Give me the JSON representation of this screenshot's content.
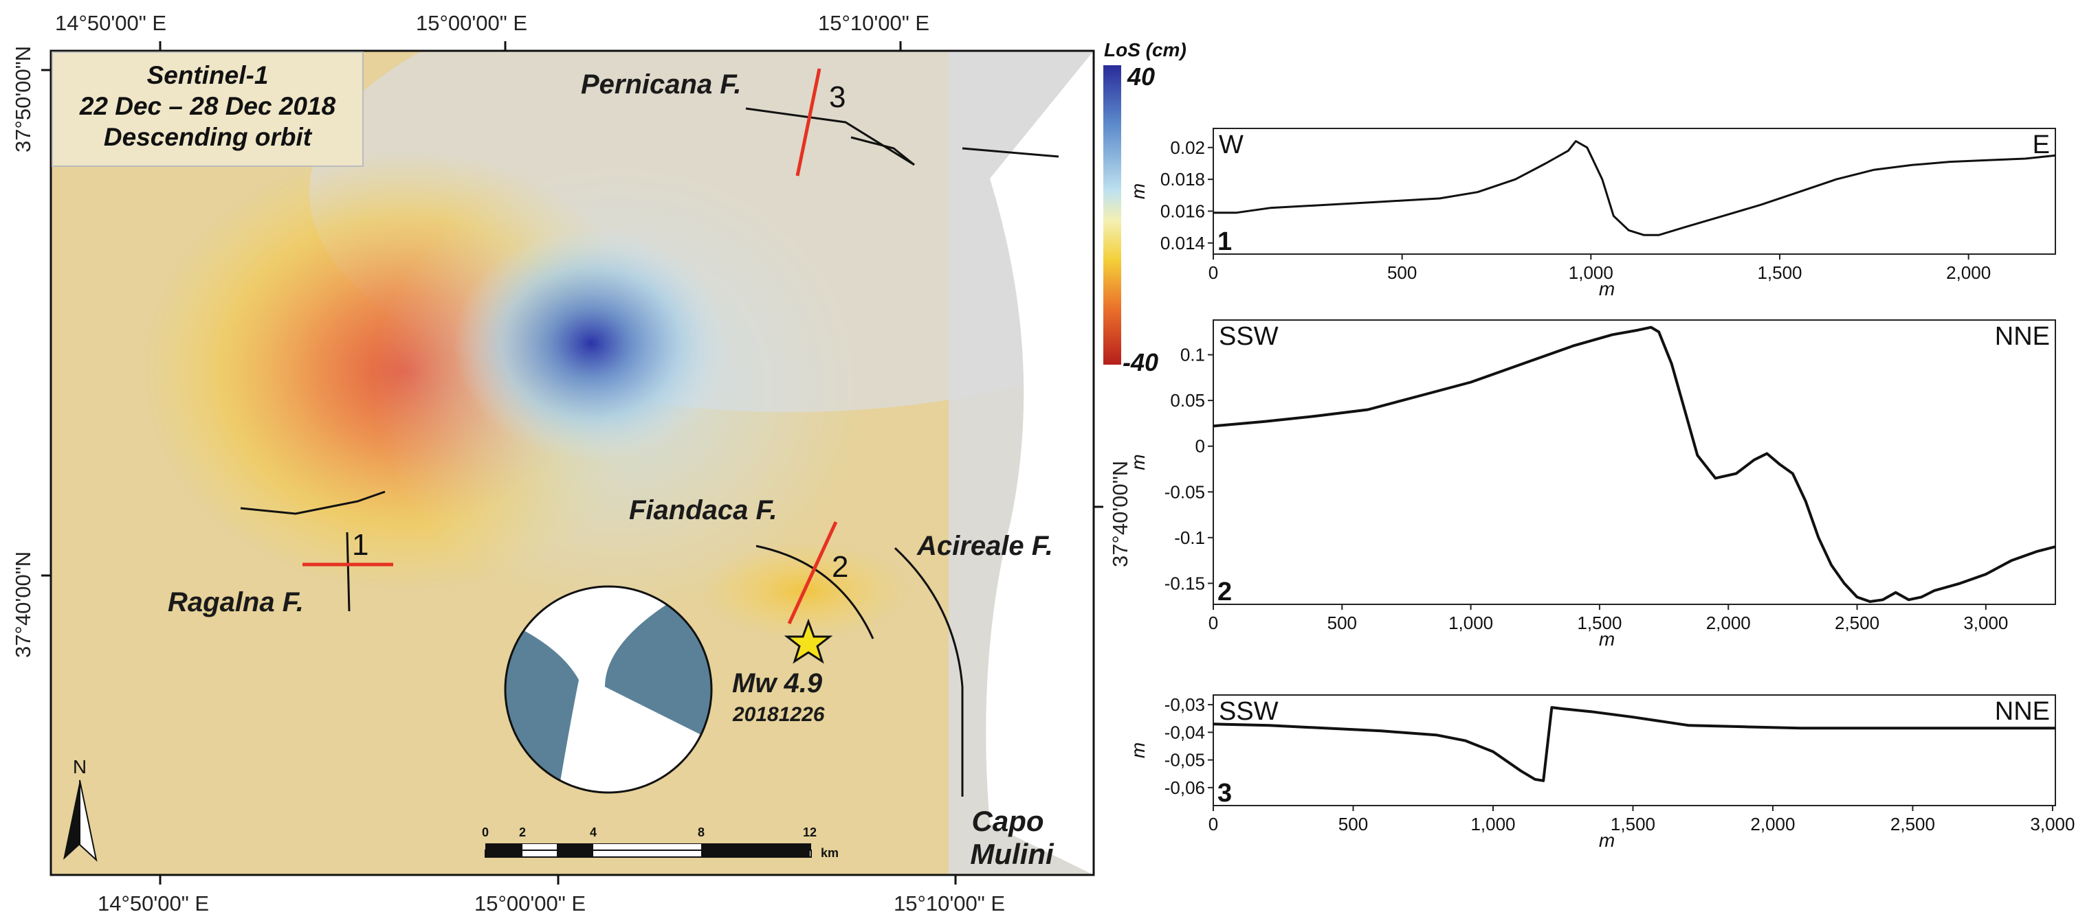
{
  "map": {
    "coords": {
      "top": [
        "14°50'00\" E",
        "15°00'00\" E",
        "15°10'00\" E"
      ],
      "bottom": [
        "14°50'00\" E",
        "15°00'00\" E",
        "15°10'00\" E"
      ],
      "left": [
        "37°50'00\"N",
        "37°40'00\"N"
      ],
      "right": [
        "37°40'00\"N"
      ]
    },
    "info_box": {
      "line1": "Sentinel-1",
      "line2": "22 Dec – 28 Dec 2018",
      "line3": "Descending orbit"
    },
    "faults": {
      "pernicana": "Pernicana F.",
      "fiandaca": "Fiandaca F.",
      "acireale": "Acireale F.",
      "ragalna": "Ragalna F."
    },
    "profile_markers": {
      "p1": "1",
      "p2": "2",
      "p3": "3"
    },
    "earthquake": {
      "magnitude": "Mw 4.9",
      "date": "20181226"
    },
    "place": {
      "line1": "Capo",
      "line2": "Mulini"
    },
    "north_arrow": {
      "label": "N"
    },
    "scale_bar": {
      "ticks": [
        "0",
        "2",
        "4",
        "8",
        "12"
      ],
      "unit": "km"
    },
    "colorbar": {
      "title": "LoS (cm)",
      "max": "40",
      "min": "-40"
    },
    "colors": {
      "profile_line": "#e63223",
      "fault_line": "#111111",
      "beachball_fill": "#5a8198",
      "star": "#f5e21b"
    }
  },
  "chart_data": [
    {
      "type": "line",
      "panel": "1",
      "left_label": "W",
      "right_label": "E",
      "xlabel": "m",
      "ylabel": "m",
      "xticks": [
        "0",
        "500",
        "1,000",
        "1,500",
        "2,000"
      ],
      "yticks": [
        "0.014",
        "0.016",
        "0.018",
        "0.02"
      ],
      "xlim": [
        0,
        2230
      ],
      "ylim": [
        0.0133,
        0.0212
      ],
      "x": [
        0,
        60,
        150,
        300,
        450,
        600,
        700,
        800,
        880,
        940,
        960,
        990,
        1030,
        1060,
        1100,
        1140,
        1180,
        1250,
        1350,
        1450,
        1550,
        1650,
        1750,
        1850,
        1950,
        2050,
        2150,
        2230
      ],
      "y": [
        0.0159,
        0.0159,
        0.0162,
        0.0164,
        0.0166,
        0.0168,
        0.0172,
        0.018,
        0.019,
        0.0198,
        0.0204,
        0.02,
        0.018,
        0.0157,
        0.0148,
        0.0145,
        0.0145,
        0.015,
        0.0157,
        0.0164,
        0.0172,
        0.018,
        0.0186,
        0.0189,
        0.0191,
        0.0192,
        0.0193,
        0.0195
      ]
    },
    {
      "type": "line",
      "panel": "2",
      "left_label": "SSW",
      "right_label": "NNE",
      "xlabel": "m",
      "ylabel": "m",
      "xticks": [
        "0",
        "500",
        "1,000",
        "1,500",
        "2,000",
        "2,500",
        "3,000"
      ],
      "yticks": [
        "-0.15",
        "-0.1",
        "-0.05",
        "0",
        "0.05",
        "0.1"
      ],
      "xlim": [
        0,
        3270
      ],
      "ylim": [
        -0.173,
        0.138
      ],
      "x": [
        0,
        200,
        400,
        600,
        800,
        1000,
        1200,
        1400,
        1550,
        1650,
        1700,
        1730,
        1780,
        1830,
        1880,
        1950,
        2030,
        2100,
        2150,
        2200,
        2250,
        2300,
        2350,
        2400,
        2450,
        2500,
        2550,
        2600,
        2650,
        2700,
        2750,
        2800,
        2900,
        3000,
        3100,
        3200,
        3270
      ],
      "y": [
        0.022,
        0.027,
        0.033,
        0.04,
        0.055,
        0.07,
        0.09,
        0.11,
        0.122,
        0.127,
        0.13,
        0.125,
        0.09,
        0.04,
        -0.01,
        -0.035,
        -0.03,
        -0.015,
        -0.008,
        -0.02,
        -0.03,
        -0.06,
        -0.1,
        -0.13,
        -0.15,
        -0.165,
        -0.17,
        -0.168,
        -0.16,
        -0.168,
        -0.165,
        -0.158,
        -0.15,
        -0.14,
        -0.125,
        -0.115,
        -0.11
      ]
    },
    {
      "type": "line",
      "panel": "3",
      "left_label": "SSW",
      "right_label": "NNE",
      "xlabel": "m",
      "ylabel": "m",
      "xticks": [
        "0",
        "500",
        "1,000",
        "1,500",
        "2,000",
        "2,500",
        "3,000"
      ],
      "yticks": [
        "-0,06",
        "-0,05",
        "-0,04",
        "-0,03"
      ],
      "xlim": [
        0,
        3010
      ],
      "ylim": [
        -0.0665,
        -0.0265
      ],
      "x": [
        0,
        200,
        400,
        600,
        800,
        900,
        1000,
        1100,
        1150,
        1180,
        1210,
        1250,
        1350,
        1500,
        1700,
        1900,
        2100,
        2300,
        2500,
        2700,
        2900,
        3010
      ],
      "y": [
        -0.037,
        -0.0375,
        -0.0385,
        -0.0395,
        -0.041,
        -0.043,
        -0.047,
        -0.054,
        -0.057,
        -0.0575,
        -0.031,
        -0.0315,
        -0.0325,
        -0.0345,
        -0.0375,
        -0.038,
        -0.0385,
        -0.0385,
        -0.0385,
        -0.0385,
        -0.0385,
        -0.0385
      ]
    }
  ]
}
